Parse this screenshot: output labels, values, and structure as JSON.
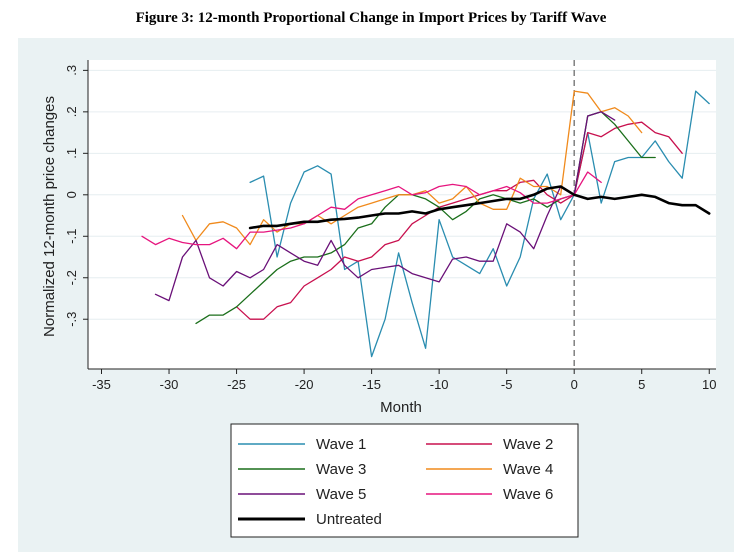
{
  "figure_title": "Figure 3: 12-month Proportional Change in Import Prices by Tariff Wave",
  "chart_data": {
    "type": "line",
    "title": "Figure 3: 12-month Proportional Change in Import Prices by Tariff Wave",
    "xlabel": "Month",
    "ylabel": "Normalized 12-month price changes",
    "xlim": [
      -36,
      10.5
    ],
    "ylim": [
      -0.42,
      0.325
    ],
    "xticks": [
      -35,
      -30,
      -25,
      -20,
      -15,
      -10,
      -5,
      0,
      5,
      10
    ],
    "xtick_labels": [
      "-35",
      "-30",
      "-25",
      "-20",
      "-15",
      "-10",
      "-5",
      "0",
      "5",
      "10"
    ],
    "yticks": [
      -0.3,
      -0.2,
      -0.1,
      0,
      0.1,
      0.2,
      0.3
    ],
    "ytick_labels": [
      "-.3",
      "-.2",
      "-.1",
      "0",
      ".1",
      ".2",
      ".3"
    ],
    "vline_x": 0,
    "grid": "horizontal",
    "legend_position": "bottom",
    "series": [
      {
        "name": "Wave 1",
        "color": "#2a8db0",
        "width": 1.3,
        "x": [
          -24,
          -23,
          -22,
          -21,
          -20,
          -19,
          -18,
          -17,
          -16,
          -15,
          -14,
          -13,
          -12,
          -11,
          -10,
          -9,
          -8,
          -7,
          -6,
          -5,
          -4,
          -3,
          -2,
          -1,
          0,
          1,
          2,
          3,
          4,
          5,
          6,
          7,
          8,
          9,
          10
        ],
        "y": [
          0.03,
          0.045,
          -0.15,
          -0.02,
          0.055,
          0.07,
          0.05,
          -0.18,
          -0.16,
          -0.39,
          -0.3,
          -0.14,
          -0.26,
          -0.37,
          -0.06,
          -0.15,
          -0.17,
          -0.19,
          -0.13,
          -0.22,
          -0.15,
          -0.01,
          0.05,
          -0.06,
          0.0,
          0.15,
          -0.02,
          0.08,
          0.09,
          0.09,
          0.13,
          0.08,
          0.04,
          0.25,
          0.22
        ]
      },
      {
        "name": "Wave 2",
        "color": "#c8104e",
        "width": 1.3,
        "x": [
          -25,
          -24,
          -23,
          -22,
          -21,
          -20,
          -19,
          -18,
          -17,
          -16,
          -15,
          -14,
          -13,
          -12,
          -11,
          -10,
          -9,
          -8,
          -7,
          -6,
          -5,
          -4,
          -3,
          -2,
          -1,
          0,
          1,
          2,
          3,
          4,
          5,
          6,
          7,
          8
        ],
        "y": [
          -0.27,
          -0.3,
          -0.3,
          -0.27,
          -0.26,
          -0.22,
          -0.2,
          -0.18,
          -0.15,
          -0.16,
          -0.15,
          -0.12,
          -0.11,
          -0.07,
          -0.05,
          -0.03,
          -0.02,
          -0.01,
          0.0,
          0.01,
          0.01,
          0.03,
          0.035,
          0.0,
          -0.02,
          0.0,
          0.15,
          0.14,
          0.16,
          0.17,
          0.175,
          0.15,
          0.14,
          0.1
        ]
      },
      {
        "name": "Wave 3",
        "color": "#1a6e1a",
        "width": 1.3,
        "x": [
          -28,
          -27,
          -26,
          -25,
          -24,
          -23,
          -22,
          -21,
          -20,
          -19,
          -18,
          -17,
          -16,
          -15,
          -14,
          -13,
          -12,
          -11,
          -10,
          -9,
          -8,
          -7,
          -6,
          -5,
          -4,
          -3,
          -2,
          -1,
          0,
          1,
          2,
          3,
          4,
          5,
          6
        ],
        "y": [
          -0.31,
          -0.29,
          -0.29,
          -0.27,
          -0.24,
          -0.21,
          -0.18,
          -0.16,
          -0.15,
          -0.15,
          -0.14,
          -0.12,
          -0.08,
          -0.07,
          -0.03,
          0.0,
          0.0,
          -0.01,
          -0.03,
          -0.06,
          -0.04,
          -0.01,
          0.0,
          -0.01,
          -0.02,
          -0.01,
          -0.03,
          -0.01,
          0.0,
          0.19,
          0.2,
          0.17,
          0.13,
          0.09,
          0.09
        ]
      },
      {
        "name": "Wave 4",
        "color": "#f08a1c",
        "width": 1.3,
        "x": [
          -29,
          -28,
          -27,
          -26,
          -25,
          -24,
          -23,
          -22,
          -21,
          -20,
          -19,
          -18,
          -17,
          -16,
          -15,
          -14,
          -13,
          -12,
          -11,
          -10,
          -9,
          -8,
          -7,
          -6,
          -5,
          -4,
          -3,
          -2,
          -1,
          0,
          1,
          2,
          3,
          4,
          5
        ],
        "y": [
          -0.05,
          -0.11,
          -0.07,
          -0.065,
          -0.08,
          -0.12,
          -0.06,
          -0.09,
          -0.07,
          -0.07,
          -0.05,
          -0.07,
          -0.05,
          -0.03,
          -0.02,
          -0.01,
          0.0,
          0.0,
          0.01,
          -0.02,
          -0.01,
          0.02,
          -0.02,
          -0.035,
          -0.035,
          0.04,
          0.02,
          0.02,
          0.0,
          0.25,
          0.245,
          0.2,
          0.21,
          0.19,
          0.15
        ]
      },
      {
        "name": "Wave 5",
        "color": "#6a1078",
        "width": 1.3,
        "x": [
          -31,
          -30,
          -29,
          -28,
          -27,
          -26,
          -25,
          -24,
          -23,
          -22,
          -21,
          -20,
          -19,
          -18,
          -17,
          -16,
          -15,
          -14,
          -13,
          -12,
          -11,
          -10,
          -9,
          -8,
          -7,
          -6,
          -5,
          -4,
          -3,
          -2,
          -1,
          0,
          1,
          2,
          3
        ],
        "y": [
          -0.24,
          -0.255,
          -0.15,
          -0.11,
          -0.2,
          -0.22,
          -0.185,
          -0.2,
          -0.18,
          -0.12,
          -0.14,
          -0.16,
          -0.17,
          -0.11,
          -0.17,
          -0.2,
          -0.18,
          -0.175,
          -0.17,
          -0.19,
          -0.2,
          -0.21,
          -0.155,
          -0.15,
          -0.16,
          -0.16,
          -0.07,
          -0.09,
          -0.13,
          -0.05,
          0.02,
          0.0,
          0.19,
          0.2,
          0.18
        ]
      },
      {
        "name": "Wave 6",
        "color": "#e6157e",
        "width": 1.3,
        "x": [
          -32,
          -31,
          -30,
          -29,
          -28,
          -27,
          -26,
          -25,
          -24,
          -23,
          -22,
          -21,
          -20,
          -19,
          -18,
          -17,
          -16,
          -15,
          -14,
          -13,
          -12,
          -11,
          -10,
          -9,
          -8,
          -7,
          -6,
          -5,
          -4,
          -3,
          -2,
          -1,
          0,
          1,
          2
        ],
        "y": [
          -0.1,
          -0.12,
          -0.105,
          -0.115,
          -0.12,
          -0.12,
          -0.105,
          -0.13,
          -0.09,
          -0.09,
          -0.085,
          -0.08,
          -0.07,
          -0.05,
          -0.03,
          -0.035,
          -0.01,
          0.0,
          0.01,
          0.02,
          0.0,
          0.005,
          0.02,
          0.025,
          0.02,
          0.0,
          0.01,
          0.02,
          0.005,
          -0.02,
          -0.02,
          -0.01,
          0.0,
          0.055,
          0.03
        ]
      },
      {
        "name": "Untreated",
        "color": "#000000",
        "width": 2.6,
        "x": [
          -24,
          -23,
          -22,
          -21,
          -20,
          -19,
          -18,
          -17,
          -16,
          -15,
          -14,
          -13,
          -12,
          -11,
          -10,
          -9,
          -8,
          -7,
          -6,
          -5,
          -4,
          -3,
          -2,
          -1,
          0,
          1,
          2,
          3,
          4,
          5,
          6,
          7,
          8,
          9,
          10
        ],
        "y": [
          -0.08,
          -0.075,
          -0.075,
          -0.07,
          -0.065,
          -0.065,
          -0.06,
          -0.058,
          -0.055,
          -0.05,
          -0.045,
          -0.045,
          -0.04,
          -0.045,
          -0.035,
          -0.03,
          -0.025,
          -0.02,
          -0.015,
          -0.01,
          -0.01,
          0.0,
          0.015,
          0.02,
          0.0,
          -0.01,
          -0.005,
          -0.01,
          -0.005,
          0.0,
          -0.005,
          -0.02,
          -0.025,
          -0.025,
          -0.045
        ]
      }
    ]
  }
}
